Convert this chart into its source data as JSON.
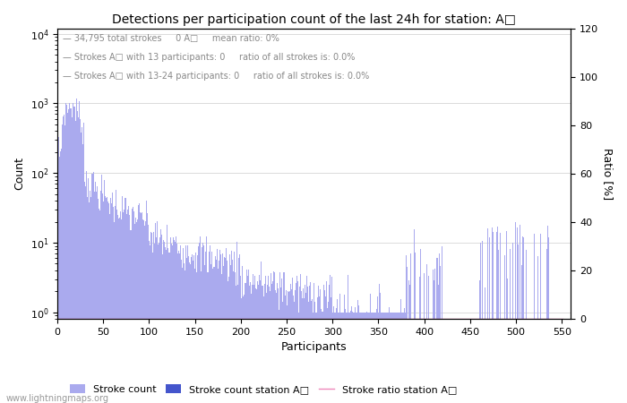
{
  "title": "Detections per participation count of the last 24h for station: A□",
  "annotation_lines": [
    "  34,795 total strokes     0 A□     mean ratio: 0%",
    "  Strokes A□ with 13 participants: 0     ratio of all strokes is: 0.0%",
    "  Strokes A□ with 13-24 participants: 0     ratio of all strokes is: 0.0%"
  ],
  "xlabel": "Participants",
  "ylabel_left": "Count",
  "ylabel_right": "Ratio [%]",
  "bar_color_main": "#aaaaee",
  "bar_color_station": "#4455cc",
  "line_color_ratio": "#ee88bb",
  "legend_entries": [
    "Stroke count",
    "Stroke count station A□",
    "Stroke ratio station A□"
  ],
  "watermark": "www.lightningmaps.org",
  "xlim": [
    0,
    560
  ],
  "ylim_right": [
    0,
    120
  ],
  "right_yticks": [
    0,
    20,
    40,
    60,
    80,
    100,
    120
  ],
  "x_ticks": [
    0,
    50,
    100,
    150,
    200,
    250,
    300,
    350,
    400,
    450,
    500,
    550
  ],
  "yticks_left": [
    1,
    10,
    100,
    1000,
    10000
  ],
  "ytick_labels_left": [
    "10^0",
    "10^1",
    "10^2",
    "10^3",
    "10^4"
  ]
}
